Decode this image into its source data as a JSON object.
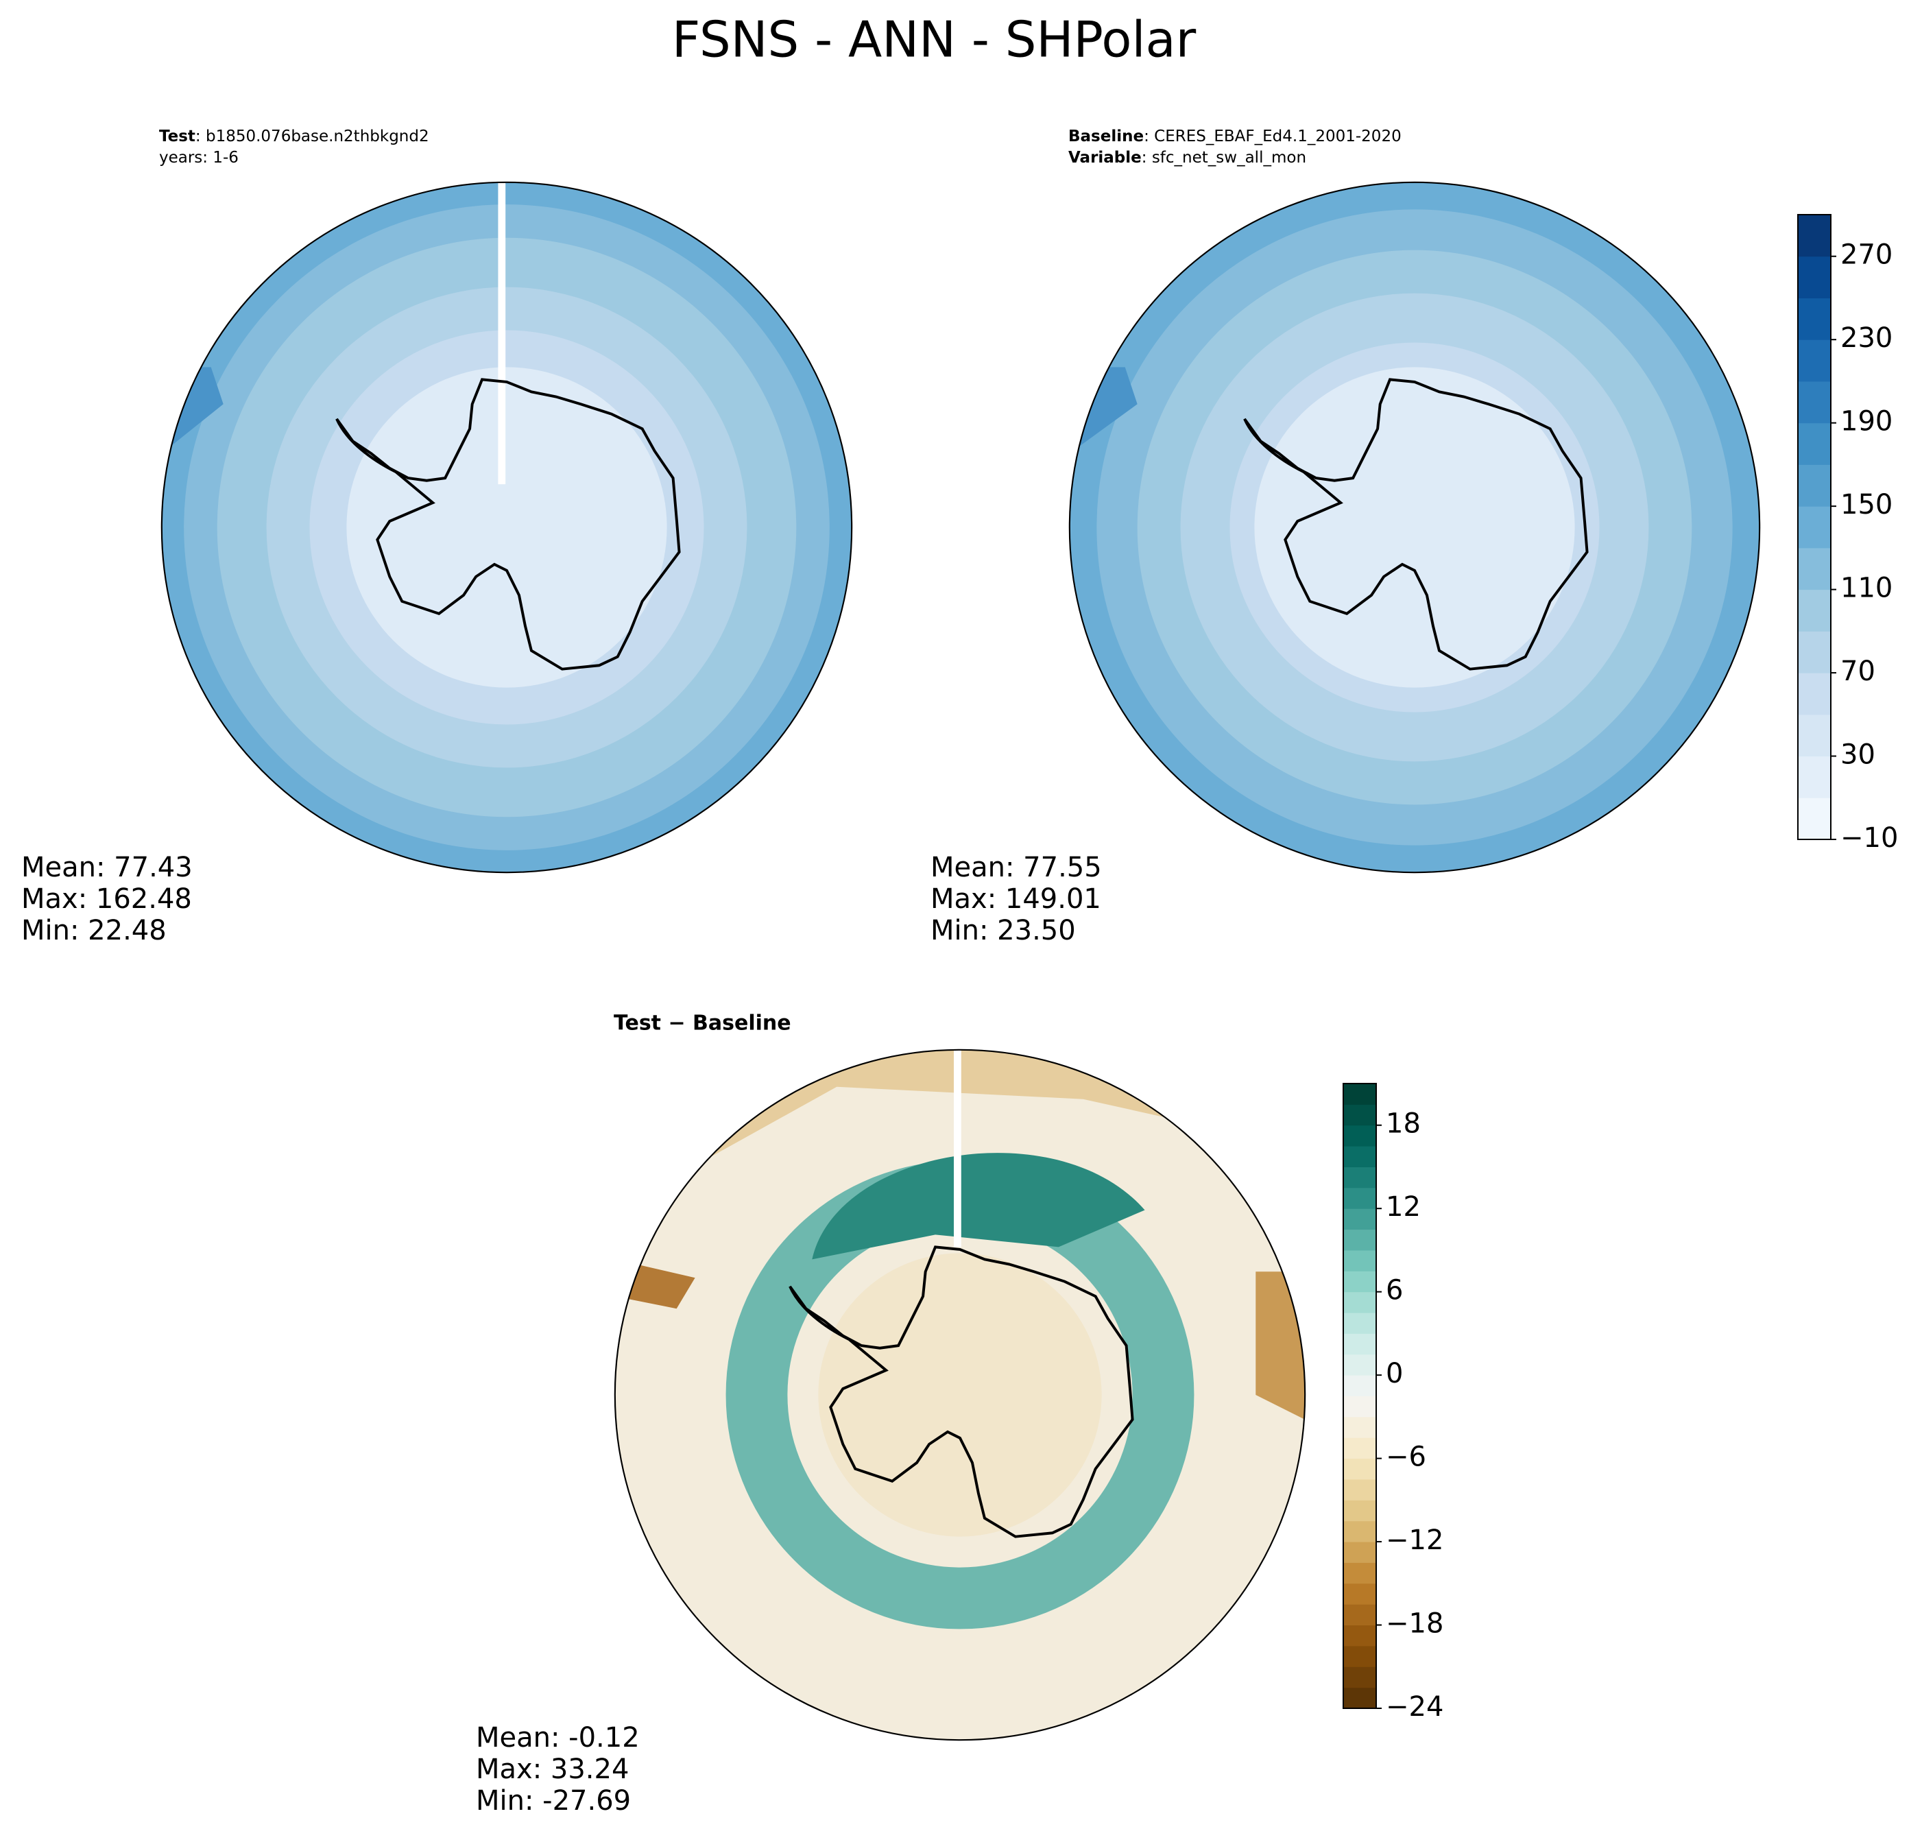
{
  "title": "FSNS - ANN - SHPolar",
  "panels": [
    {
      "lines": [
        {
          "label": "Test",
          "text": ": b1850.076base.n2thbkgnd2"
        },
        {
          "text": "years: 1-6"
        }
      ],
      "stats": [
        "Mean: 77.43",
        "Max: 162.48",
        "Min: 22.48"
      ]
    },
    {
      "lines": [
        {
          "label": "Baseline",
          "text": ": CERES_EBAF_Ed4.1_2001-2020"
        },
        {
          "label": "Variable",
          "text": ": sfc_net_sw_all_mon"
        }
      ],
      "stats": [
        "Mean: 77.55",
        "Max: 149.01",
        "Min: 23.50"
      ]
    },
    {
      "title": "Test − Baseline",
      "stats": [
        "Mean: -0.12",
        "Max: 33.24",
        "Min: -27.69"
      ]
    }
  ],
  "colorbars": [
    {
      "ylim": [
        -10,
        290
      ],
      "levels": 15,
      "colormap": [
        "#f7fbff",
        "#deebf7",
        "#c6dbef",
        "#9ecae1",
        "#6baed6",
        "#4292c6",
        "#2171b5",
        "#08519c",
        "#08306b"
      ],
      "yticks": [
        {
          "value": -10,
          "label": "−10"
        },
        30,
        70,
        110,
        150,
        190,
        230,
        270
      ]
    },
    {
      "ylim": [
        -24,
        21
      ],
      "levels": 30,
      "colormap": [
        "#543005",
        "#8c510a",
        "#bf812d",
        "#dfc27d",
        "#f6e8c3",
        "#f5f5f5",
        "#c7eae5",
        "#80cdc1",
        "#35978f",
        "#01665e",
        "#003c30"
      ],
      "yticks": [
        {
          "value": -24,
          "label": "−24"
        },
        {
          "value": -18,
          "label": "−18"
        },
        {
          "value": -12,
          "label": "−12"
        },
        {
          "value": -6,
          "label": "−6"
        },
        0,
        6,
        12,
        18
      ]
    }
  ]
}
